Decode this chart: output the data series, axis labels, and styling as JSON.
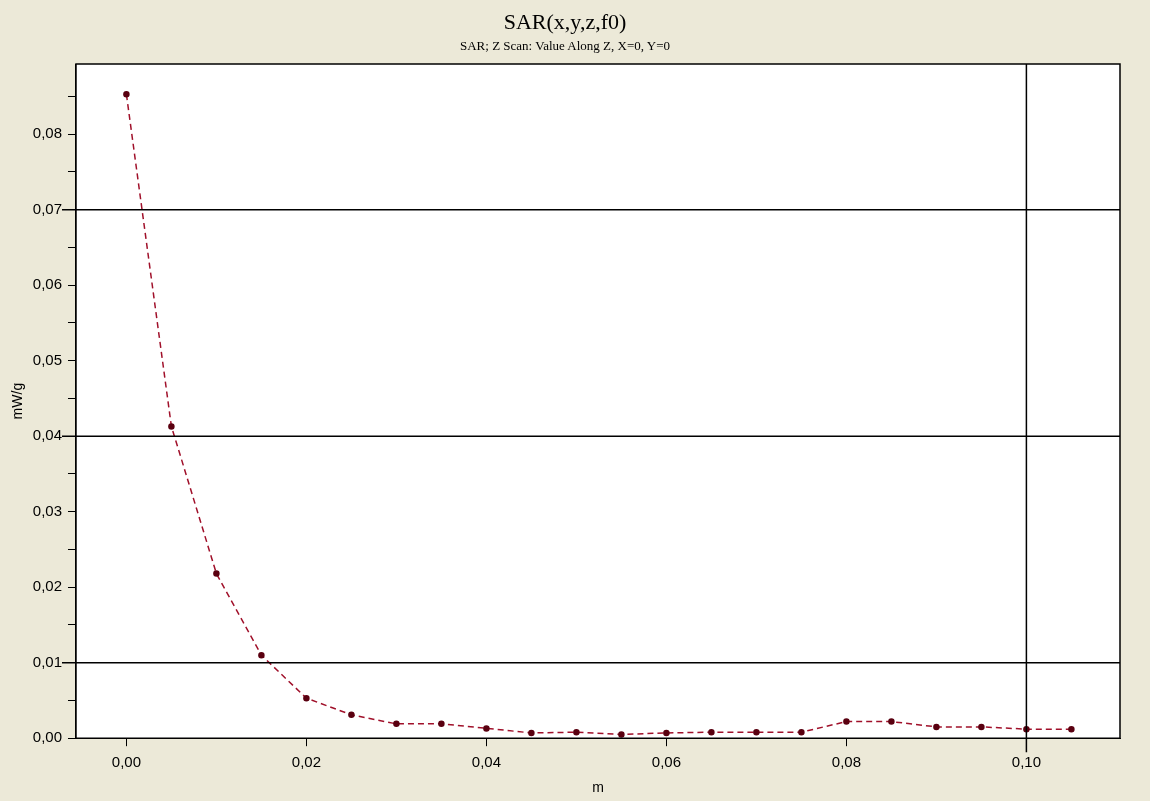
{
  "chart_data": {
    "type": "line",
    "title": "SAR(x,y,z,f0)",
    "subtitle": "SAR; Z Scan: Value Along Z, X=0, Y=0",
    "xlabel": "m",
    "ylabel": "mW/g",
    "x": [
      0,
      0.005,
      0.01,
      0.015,
      0.02,
      0.025,
      0.03,
      0.035,
      0.04,
      0.045,
      0.05,
      0.055,
      0.06,
      0.065,
      0.07,
      0.075,
      0.08,
      0.085,
      0.09,
      0.095,
      0.1,
      0.105
    ],
    "series": [
      {
        "color": "#a0102a",
        "values": [
          0.0853,
          0.0413,
          0.0218,
          0.011,
          0.0053,
          0.0031,
          0.0019,
          0.0019,
          0.0013,
          0.0007,
          0.0008,
          0.0005,
          0.0007,
          0.0008,
          0.0008,
          0.0008,
          0.0022,
          0.0022,
          0.0015,
          0.0015,
          0.0012,
          0.0012
        ]
      }
    ],
    "xlim": [
      -0.0056,
      0.1104
    ],
    "ylim": [
      0,
      0.0893
    ],
    "xticks": [
      {
        "value": 0,
        "label": "0,00"
      },
      {
        "value": 0.02,
        "label": "0,02"
      },
      {
        "value": 0.04,
        "label": "0,04"
      },
      {
        "value": 0.06,
        "label": "0,06"
      },
      {
        "value": 0.08,
        "label": "0,08"
      },
      {
        "value": 0.1,
        "label": "0,10"
      }
    ],
    "yticks": [
      {
        "value": 0,
        "label": "0,00"
      },
      {
        "value": 0.005,
        "label": null
      },
      {
        "value": 0.01,
        "label": "0,01"
      },
      {
        "value": 0.015,
        "label": null
      },
      {
        "value": 0.02,
        "label": "0,02"
      },
      {
        "value": 0.025,
        "label": null
      },
      {
        "value": 0.03,
        "label": "0,03"
      },
      {
        "value": 0.035,
        "label": null
      },
      {
        "value": 0.04,
        "label": "0,04"
      },
      {
        "value": 0.045,
        "label": null
      },
      {
        "value": 0.05,
        "label": "0,05"
      },
      {
        "value": 0.055,
        "label": null
      },
      {
        "value": 0.06,
        "label": "0,06"
      },
      {
        "value": 0.065,
        "label": null
      },
      {
        "value": 0.07,
        "label": "0,07"
      },
      {
        "value": 0.075,
        "label": null
      },
      {
        "value": 0.08,
        "label": "0,08"
      },
      {
        "value": 0.085,
        "label": null
      }
    ],
    "ref_lines": [
      {
        "axis": "y",
        "value": 0.01,
        "color": "#000000"
      },
      {
        "axis": "y",
        "value": 0.04,
        "color": "#000000"
      },
      {
        "axis": "y",
        "value": 0.07,
        "color": "#000000"
      },
      {
        "axis": "x",
        "value": 0.1,
        "color": "#000000"
      }
    ],
    "grid": false,
    "legend": false,
    "marker": "circle",
    "line_style": "dashed"
  }
}
